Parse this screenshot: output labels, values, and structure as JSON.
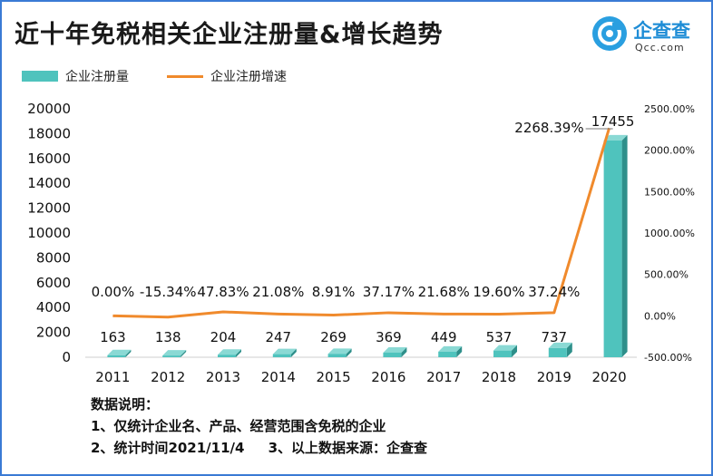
{
  "title": "近十年免税相关企业注册量&增长趋势",
  "logo": {
    "cn": "企查查",
    "en": "Qcc.com"
  },
  "colors": {
    "bar": "#4fc3bd",
    "bar_dark": "#2e8f8a",
    "line": "#f08a2c"
  },
  "chart_data": {
    "type": "bar+line",
    "categories": [
      "2011",
      "2012",
      "2013",
      "2014",
      "2015",
      "2016",
      "2017",
      "2018",
      "2019",
      "2020"
    ],
    "series": [
      {
        "name": "企业注册量",
        "type": "bar",
        "axis": "left",
        "values": [
          163,
          138,
          204,
          247,
          269,
          369,
          449,
          537,
          737,
          17455
        ]
      },
      {
        "name": "企业注册增速",
        "type": "line",
        "axis": "right",
        "values": [
          0.0,
          -15.34,
          47.83,
          21.08,
          8.91,
          37.17,
          21.68,
          19.6,
          37.24,
          2268.39
        ],
        "labels": [
          "0.00%",
          "-15.34%",
          "47.83%",
          "21.08%",
          "8.91%",
          "37.17%",
          "21.68%",
          "19.60%",
          "37.24%",
          "2268.39%"
        ]
      }
    ],
    "bar_labels": [
      "163",
      "138",
      "204",
      "247",
      "269",
      "369",
      "449",
      "537",
      "737",
      "17455"
    ],
    "left_axis": {
      "ylim": [
        0,
        20000
      ],
      "ticks": [
        "0",
        "2000",
        "4000",
        "6000",
        "8000",
        "10000",
        "12000",
        "14000",
        "16000",
        "18000",
        "20000"
      ]
    },
    "right_axis": {
      "ylim": [
        -500,
        2500
      ],
      "ticks": [
        "-500.00%",
        "0.00%",
        "500.00%",
        "1000.00%",
        "1500.00%",
        "2000.00%",
        "2500.00%"
      ]
    },
    "legend_position": "top-left",
    "grid": false
  },
  "notes": [
    "数据说明：",
    "1、仅统计企业名、产品、经营范围含免税的企业",
    "2、统计时间2021/11/4     3、以上数据来源：企查查"
  ]
}
